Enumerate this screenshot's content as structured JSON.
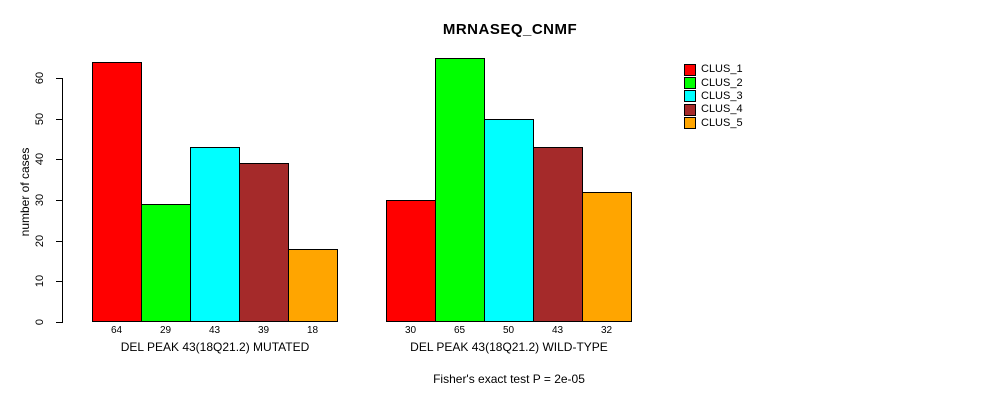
{
  "title": "MRNASEQ_CNMF",
  "y_axis_label": "number of cases",
  "caption": "Fisher's exact test P = 2e-05",
  "legend": {
    "items": [
      {
        "label": "CLUS_1",
        "color": "#FF0000"
      },
      {
        "label": "CLUS_2",
        "color": "#00FF00"
      },
      {
        "label": "CLUS_3",
        "color": "#00FFFF"
      },
      {
        "label": "CLUS_4",
        "color": "#A52A2A"
      },
      {
        "label": "CLUS_5",
        "color": "#FFA500"
      }
    ]
  },
  "chart_data": {
    "type": "bar",
    "title": "MRNASEQ_CNMF",
    "xlabel": "",
    "ylabel": "number of cases",
    "ylim": [
      0,
      65
    ],
    "yticks": [
      0,
      10,
      20,
      30,
      40,
      50,
      60
    ],
    "grid": false,
    "legend_position": "right",
    "annotation": "Fisher's exact test P = 2e-05",
    "bar_value_labels_shown": true,
    "groups": [
      {
        "label": "DEL PEAK 43(18Q21.2) MUTATED",
        "values": [
          64,
          29,
          43,
          39,
          18
        ]
      },
      {
        "label": "DEL PEAK 43(18Q21.2) WILD-TYPE",
        "values": [
          30,
          65,
          50,
          43,
          32
        ]
      }
    ],
    "series": [
      {
        "name": "CLUS_1",
        "color": "#FF0000",
        "values": [
          64,
          30
        ]
      },
      {
        "name": "CLUS_2",
        "color": "#00FF00",
        "values": [
          29,
          65
        ]
      },
      {
        "name": "CLUS_3",
        "color": "#00FFFF",
        "values": [
          43,
          50
        ]
      },
      {
        "name": "CLUS_4",
        "color": "#A52A2A",
        "values": [
          39,
          43
        ]
      },
      {
        "name": "CLUS_5",
        "color": "#FFA500",
        "values": [
          18,
          32
        ]
      }
    ]
  }
}
